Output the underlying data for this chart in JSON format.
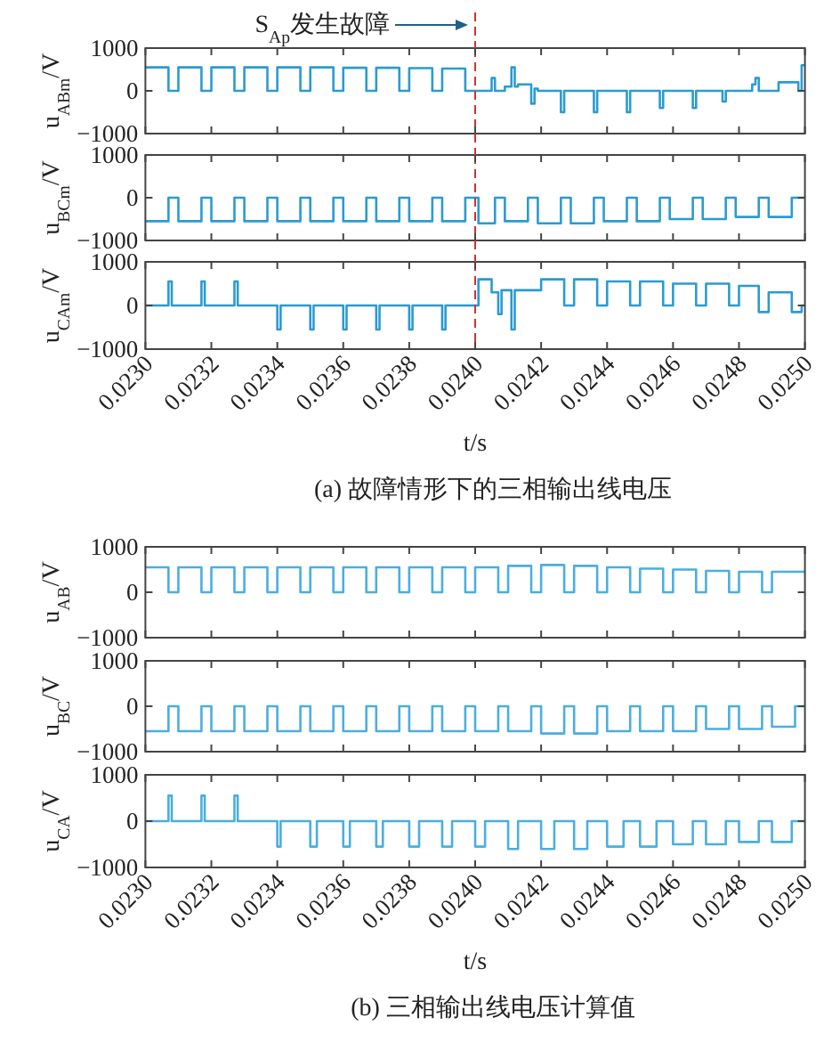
{
  "chart_data": [
    {
      "type": "step",
      "ylabel": "u$_{ABm}$/V",
      "xlim": [
        0.023,
        0.025
      ],
      "ylim": [
        -1000,
        1000
      ],
      "yticks": [
        -1000,
        0,
        1000
      ],
      "tick_labels": "y",
      "xticks": [
        {
          "value": 0.023,
          "label": null
        },
        {
          "value": 0.0232,
          "label": null
        },
        {
          "value": 0.0234,
          "label": null
        },
        {
          "value": 0.0236,
          "label": null
        },
        {
          "value": 0.0238,
          "label": null
        },
        {
          "value": 0.024,
          "label": null
        },
        {
          "value": 0.0242,
          "label": null
        },
        {
          "value": 0.0244,
          "label": null
        },
        {
          "value": 0.0246,
          "label": null
        },
        {
          "value": 0.0248,
          "label": null
        },
        {
          "value": 0.025,
          "label": null
        }
      ],
      "ref_lines": [
        {
          "axis": "x",
          "value": 0.024,
          "color": "#cc3333",
          "line_style": "dashed"
        }
      ],
      "annotations": [
        "S$_{Ap}$发生故障"
      ],
      "x": [
        0.023,
        0.02307,
        0.0231,
        0.02317,
        0.0232,
        0.02327,
        0.0233,
        0.02337,
        0.0234,
        0.02347,
        0.0235,
        0.02357,
        0.0236,
        0.02367,
        0.0237,
        0.02377,
        0.0238,
        0.02387,
        0.0239,
        0.02397,
        0.02405,
        0.02406,
        0.02409,
        0.02411,
        0.02412,
        0.02413,
        0.02417,
        0.02418,
        0.02419,
        0.02426,
        0.02427,
        0.02436,
        0.02437,
        0.02446,
        0.02447,
        0.02456,
        0.02457,
        0.02466,
        0.02467,
        0.02475,
        0.02476,
        0.02484,
        0.02485,
        0.02486,
        0.02492,
        0.02498,
        0.02499,
        0.025
      ],
      "series": [
        {
          "color": "#2a9bd0",
          "values": [
            550,
            0,
            550,
            0,
            550,
            0,
            550,
            0,
            550,
            0,
            550,
            0,
            540,
            0,
            540,
            0,
            530,
            0,
            520,
            0,
            300,
            0,
            100,
            550,
            100,
            150,
            -300,
            50,
            0,
            -500,
            0,
            -500,
            0,
            -500,
            0,
            -400,
            0,
            -400,
            0,
            -250,
            0,
            150,
            300,
            0,
            200,
            0,
            600,
            600
          ]
        }
      ]
    },
    {
      "type": "step",
      "ylabel": "u$_{BCm}$/V",
      "xlim": [
        0.023,
        0.025
      ],
      "ylim": [
        -1000,
        1000
      ],
      "yticks": [
        -1000,
        0,
        1000
      ],
      "tick_labels": "y",
      "xticks": [
        {
          "value": 0.023,
          "label": null
        },
        {
          "value": 0.0232,
          "label": null
        },
        {
          "value": 0.0234,
          "label": null
        },
        {
          "value": 0.0236,
          "label": null
        },
        {
          "value": 0.0238,
          "label": null
        },
        {
          "value": 0.024,
          "label": null
        },
        {
          "value": 0.0242,
          "label": null
        },
        {
          "value": 0.0244,
          "label": null
        },
        {
          "value": 0.0246,
          "label": null
        },
        {
          "value": 0.0248,
          "label": null
        },
        {
          "value": 0.025,
          "label": null
        }
      ],
      "ref_lines": [
        {
          "axis": "x",
          "value": 0.024,
          "color": "#cc3333",
          "line_style": "dashed"
        }
      ],
      "x": [
        0.023,
        0.02307,
        0.0231,
        0.02317,
        0.0232,
        0.02327,
        0.0233,
        0.02337,
        0.0234,
        0.02347,
        0.0235,
        0.02357,
        0.0236,
        0.02367,
        0.0237,
        0.02377,
        0.0238,
        0.02387,
        0.0239,
        0.02397,
        0.02401,
        0.02406,
        0.02409,
        0.02416,
        0.02419,
        0.02426,
        0.02429,
        0.02436,
        0.02439,
        0.02446,
        0.02449,
        0.02456,
        0.02459,
        0.02466,
        0.02469,
        0.02476,
        0.02479,
        0.02486,
        0.02489,
        0.02496,
        0.025
      ],
      "series": [
        {
          "color": "#2a9bd0",
          "values": [
            -550,
            0,
            -550,
            0,
            -550,
            0,
            -550,
            0,
            -550,
            0,
            -550,
            0,
            -550,
            0,
            -550,
            0,
            -550,
            0,
            -550,
            0,
            -600,
            0,
            -550,
            0,
            -600,
            0,
            -600,
            0,
            -550,
            0,
            -550,
            0,
            -500,
            0,
            -500,
            0,
            -450,
            0,
            -450,
            0,
            0
          ]
        }
      ]
    },
    {
      "type": "step",
      "ylabel": "u$_{CAm}$/V",
      "xlabel": "t/s",
      "xlim": [
        0.023,
        0.025
      ],
      "ylim": [
        -1000,
        1000
      ],
      "yticks": [
        -1000,
        0,
        1000
      ],
      "xticks": [
        {
          "value": 0.023,
          "label": "0.0230"
        },
        {
          "value": 0.0232,
          "label": "0.0232"
        },
        {
          "value": 0.0234,
          "label": "0.0234"
        },
        {
          "value": 0.0236,
          "label": "0.0236"
        },
        {
          "value": 0.0238,
          "label": "0.0238"
        },
        {
          "value": 0.024,
          "label": "0.0240"
        },
        {
          "value": 0.0242,
          "label": "0.0242"
        },
        {
          "value": 0.0244,
          "label": "0.0244"
        },
        {
          "value": 0.0246,
          "label": "0.0246"
        },
        {
          "value": 0.0248,
          "label": "0.0248"
        },
        {
          "value": 0.025,
          "label": "0.0250"
        }
      ],
      "ref_lines": [
        {
          "axis": "x",
          "value": 0.024,
          "color": "#cc3333",
          "line_style": "dashed"
        }
      ],
      "annotations": [
        "(a) 故障情形下的三相输出线电压"
      ],
      "x": [
        0.023,
        0.02307,
        0.02308,
        0.02317,
        0.02318,
        0.02327,
        0.02328,
        0.0234,
        0.02341,
        0.0235,
        0.02351,
        0.0236,
        0.02361,
        0.0237,
        0.02371,
        0.0238,
        0.02381,
        0.0239,
        0.02391,
        0.02401,
        0.02405,
        0.02407,
        0.02408,
        0.02411,
        0.02412,
        0.0242,
        0.02427,
        0.0243,
        0.02437,
        0.0244,
        0.02447,
        0.0245,
        0.02457,
        0.0246,
        0.02467,
        0.0247,
        0.02477,
        0.0248,
        0.02486,
        0.02489,
        0.02496,
        0.02499,
        0.025
      ],
      "series": [
        {
          "color": "#2a9bd0",
          "values": [
            0,
            550,
            0,
            550,
            0,
            550,
            0,
            -550,
            0,
            -550,
            0,
            -550,
            0,
            -550,
            0,
            -550,
            0,
            -550,
            0,
            600,
            300,
            -200,
            350,
            -550,
            350,
            600,
            0,
            600,
            0,
            550,
            0,
            550,
            0,
            500,
            0,
            500,
            0,
            450,
            -150,
            300,
            -150,
            0,
            0
          ]
        }
      ]
    },
    {
      "type": "step",
      "ylabel": "u$_{AB}$/V",
      "xlim": [
        0.023,
        0.025
      ],
      "ylim": [
        -1000,
        1000
      ],
      "yticks": [
        -1000,
        0,
        1000
      ],
      "tick_labels": "y",
      "xticks": [
        {
          "value": 0.023,
          "label": null
        },
        {
          "value": 0.0232,
          "label": null
        },
        {
          "value": 0.0234,
          "label": null
        },
        {
          "value": 0.0236,
          "label": null
        },
        {
          "value": 0.0238,
          "label": null
        },
        {
          "value": 0.024,
          "label": null
        },
        {
          "value": 0.0242,
          "label": null
        },
        {
          "value": 0.0244,
          "label": null
        },
        {
          "value": 0.0246,
          "label": null
        },
        {
          "value": 0.0248,
          "label": null
        },
        {
          "value": 0.025,
          "label": null
        }
      ],
      "x": [
        0.023,
        0.02307,
        0.0231,
        0.02317,
        0.0232,
        0.02327,
        0.0233,
        0.02337,
        0.0234,
        0.02347,
        0.0235,
        0.02357,
        0.0236,
        0.02367,
        0.0237,
        0.02377,
        0.0238,
        0.02387,
        0.0239,
        0.02397,
        0.024,
        0.02407,
        0.0241,
        0.02417,
        0.0242,
        0.02427,
        0.0243,
        0.02437,
        0.0244,
        0.02447,
        0.0245,
        0.02457,
        0.0246,
        0.02467,
        0.0247,
        0.02477,
        0.0248,
        0.02487,
        0.0249,
        0.025
      ],
      "series": [
        {
          "color": "#4aaee0",
          "values": [
            550,
            0,
            550,
            0,
            550,
            0,
            550,
            0,
            550,
            0,
            550,
            0,
            550,
            0,
            550,
            0,
            550,
            0,
            550,
            0,
            550,
            0,
            580,
            0,
            600,
            0,
            580,
            0,
            550,
            0,
            520,
            0,
            500,
            0,
            470,
            0,
            450,
            0,
            450,
            450
          ]
        }
      ]
    },
    {
      "type": "step",
      "ylabel": "u$_{BC}$/V",
      "xlim": [
        0.023,
        0.025
      ],
      "ylim": [
        -1000,
        1000
      ],
      "yticks": [
        -1000,
        0,
        1000
      ],
      "tick_labels": "y",
      "xticks": [
        {
          "value": 0.023,
          "label": null
        },
        {
          "value": 0.0232,
          "label": null
        },
        {
          "value": 0.0234,
          "label": null
        },
        {
          "value": 0.0236,
          "label": null
        },
        {
          "value": 0.0238,
          "label": null
        },
        {
          "value": 0.024,
          "label": null
        },
        {
          "value": 0.0242,
          "label": null
        },
        {
          "value": 0.0244,
          "label": null
        },
        {
          "value": 0.0246,
          "label": null
        },
        {
          "value": 0.0248,
          "label": null
        },
        {
          "value": 0.025,
          "label": null
        }
      ],
      "x": [
        0.023,
        0.02307,
        0.0231,
        0.02317,
        0.0232,
        0.02327,
        0.0233,
        0.02337,
        0.0234,
        0.02347,
        0.0235,
        0.02357,
        0.0236,
        0.02367,
        0.0237,
        0.02377,
        0.0238,
        0.02387,
        0.0239,
        0.02397,
        0.024,
        0.02407,
        0.0241,
        0.02417,
        0.0242,
        0.02427,
        0.0243,
        0.02437,
        0.0244,
        0.02447,
        0.0245,
        0.02457,
        0.0246,
        0.02467,
        0.0247,
        0.02477,
        0.0248,
        0.02487,
        0.0249,
        0.02497,
        0.025
      ],
      "series": [
        {
          "color": "#4aaee0",
          "values": [
            -550,
            0,
            -550,
            0,
            -550,
            0,
            -550,
            0,
            -550,
            0,
            -550,
            0,
            -550,
            0,
            -550,
            0,
            -550,
            0,
            -550,
            0,
            -550,
            0,
            -550,
            0,
            -600,
            0,
            -600,
            0,
            -550,
            0,
            -550,
            0,
            -550,
            0,
            -500,
            0,
            -500,
            0,
            -450,
            0,
            0
          ]
        }
      ]
    },
    {
      "type": "step",
      "ylabel": "u$_{CA}$/V",
      "xlabel": "t/s",
      "xlim": [
        0.023,
        0.025
      ],
      "ylim": [
        -1000,
        1000
      ],
      "yticks": [
        -1000,
        0,
        1000
      ],
      "xticks": [
        {
          "value": 0.023,
          "label": "0.0230"
        },
        {
          "value": 0.0232,
          "label": "0.0232"
        },
        {
          "value": 0.0234,
          "label": "0.0234"
        },
        {
          "value": 0.0236,
          "label": "0.0236"
        },
        {
          "value": 0.0238,
          "label": "0.0238"
        },
        {
          "value": 0.024,
          "label": "0.0240"
        },
        {
          "value": 0.0242,
          "label": "0.0242"
        },
        {
          "value": 0.0244,
          "label": "0.0244"
        },
        {
          "value": 0.0246,
          "label": "0.0246"
        },
        {
          "value": 0.0248,
          "label": "0.0248"
        },
        {
          "value": 0.025,
          "label": "0.0250"
        }
      ],
      "annotations": [
        "(b) 三相输出线电压计算值"
      ],
      "x": [
        0.023,
        0.02307,
        0.02308,
        0.02317,
        0.02318,
        0.02327,
        0.02328,
        0.0234,
        0.02341,
        0.0235,
        0.02352,
        0.0236,
        0.02362,
        0.0237,
        0.02372,
        0.0238,
        0.02383,
        0.0239,
        0.02393,
        0.024,
        0.02403,
        0.0241,
        0.02413,
        0.0242,
        0.02424,
        0.0243,
        0.02434,
        0.0244,
        0.02445,
        0.0245,
        0.02455,
        0.0246,
        0.02466,
        0.0247,
        0.02476,
        0.0248,
        0.02486,
        0.0249,
        0.02496,
        0.025
      ],
      "series": [
        {
          "color": "#4aaee0",
          "values": [
            0,
            550,
            0,
            550,
            0,
            550,
            0,
            -550,
            0,
            -550,
            0,
            -550,
            0,
            -550,
            0,
            -550,
            0,
            -550,
            0,
            -550,
            0,
            -600,
            0,
            -600,
            0,
            -600,
            0,
            -550,
            0,
            -550,
            0,
            -500,
            0,
            -500,
            0,
            -450,
            0,
            -450,
            0,
            0
          ]
        }
      ]
    }
  ]
}
